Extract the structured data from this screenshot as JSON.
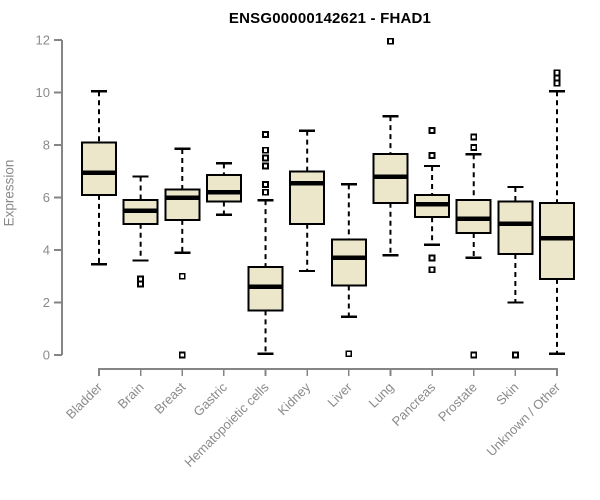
{
  "chart_data": {
    "type": "boxplot",
    "title": "ENSG00000142621 - FHAD1",
    "ylabel": "Expression",
    "xlabel": "",
    "ylim": [
      0,
      12
    ],
    "yticks": [
      0,
      2,
      4,
      6,
      8,
      10,
      12
    ],
    "grid": "off",
    "legend": "none",
    "groups": [
      {
        "label": "Bladder",
        "whisker_low": 3.45,
        "q1": 6.1,
        "median": 6.95,
        "q3": 8.1,
        "whisker_high": 10.05,
        "outliers": []
      },
      {
        "label": "Brain",
        "whisker_low": 3.6,
        "q1": 5.0,
        "median": 5.5,
        "q3": 5.9,
        "whisker_high": 6.8,
        "outliers": [
          2.9,
          2.7
        ]
      },
      {
        "label": "Breast",
        "whisker_low": 3.9,
        "q1": 5.15,
        "median": 6.0,
        "q3": 6.3,
        "whisker_high": 7.85,
        "outliers": [
          3.0,
          0.0
        ]
      },
      {
        "label": "Gastric",
        "whisker_low": 5.35,
        "q1": 5.85,
        "median": 6.2,
        "q3": 6.85,
        "whisker_high": 7.3,
        "outliers": []
      },
      {
        "label": "Hematopoietic cells",
        "whisker_low": 0.05,
        "q1": 1.7,
        "median": 2.6,
        "q3": 3.35,
        "whisker_high": 5.9,
        "outliers": [
          8.4,
          7.8,
          7.5,
          7.2,
          6.5,
          6.2
        ]
      },
      {
        "label": "Kidney",
        "whisker_low": 3.2,
        "q1": 5.0,
        "median": 6.55,
        "q3": 7.0,
        "whisker_high": 8.55,
        "outliers": []
      },
      {
        "label": "Liver",
        "whisker_low": 1.45,
        "q1": 2.65,
        "median": 3.7,
        "q3": 4.4,
        "whisker_high": 6.5,
        "outliers": [
          0.05
        ]
      },
      {
        "label": "Lung",
        "whisker_low": 3.8,
        "q1": 5.8,
        "median": 6.8,
        "q3": 7.65,
        "whisker_high": 9.1,
        "outliers": [
          11.95
        ]
      },
      {
        "label": "Pancreas",
        "whisker_low": 4.2,
        "q1": 5.25,
        "median": 5.75,
        "q3": 6.1,
        "whisker_high": 7.2,
        "outliers": [
          8.55,
          7.6,
          3.7,
          3.25
        ]
      },
      {
        "label": "Prostate",
        "whisker_low": 3.7,
        "q1": 4.65,
        "median": 5.2,
        "q3": 5.9,
        "whisker_high": 7.65,
        "outliers": [
          8.3,
          7.9,
          0.0
        ]
      },
      {
        "label": "Skin",
        "whisker_low": 2.0,
        "q1": 3.85,
        "median": 5.0,
        "q3": 5.85,
        "whisker_high": 6.4,
        "outliers": [
          0.0
        ]
      },
      {
        "label": "Unknown / Other",
        "whisker_low": 0.05,
        "q1": 2.9,
        "median": 4.45,
        "q3": 5.8,
        "whisker_high": 10.05,
        "outliers": [
          10.75,
          10.55,
          10.35
        ]
      }
    ],
    "colors": {
      "box_fill": "#ece7cb",
      "box_border": "#000000",
      "median": "#000000",
      "whisker": "#000000",
      "outlier_fill": "#ffffff",
      "axis": "#858585",
      "tick_label": "#8a8a8a",
      "title": "#000000"
    }
  }
}
